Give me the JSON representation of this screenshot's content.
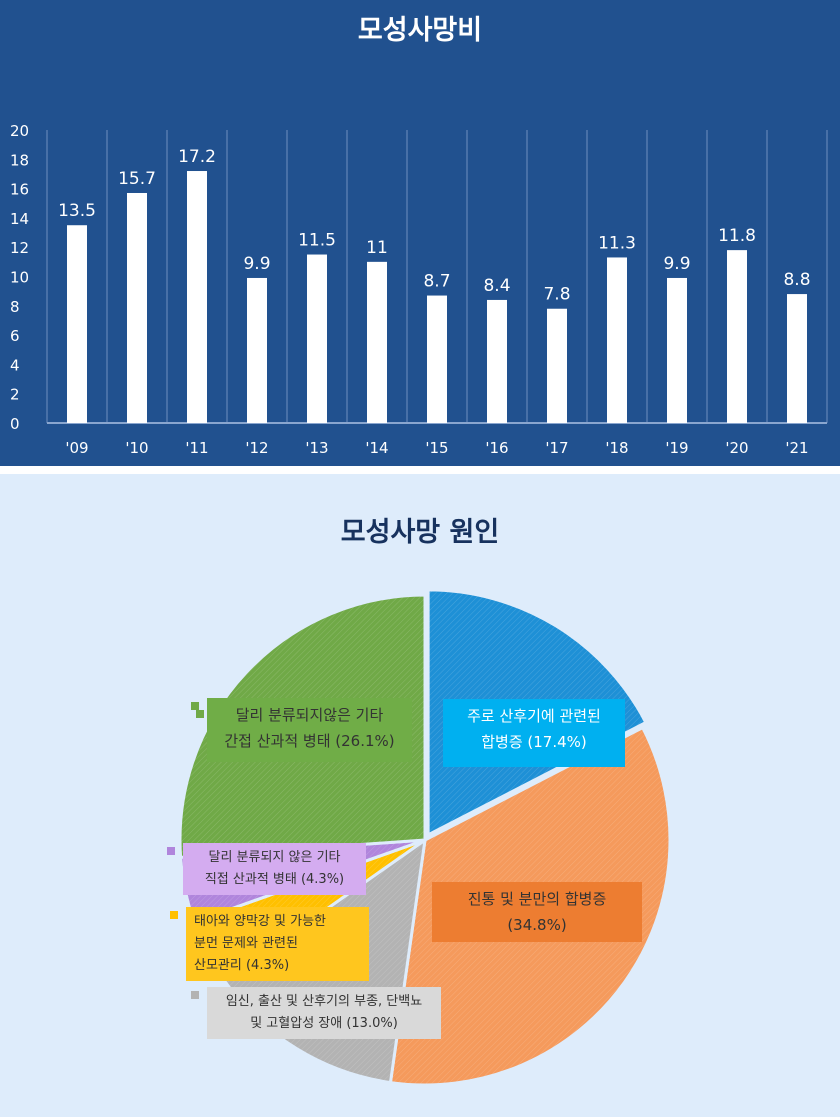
{
  "chart_data": [
    {
      "type": "bar",
      "title": "모성사망비",
      "categories": [
        "'09",
        "'10",
        "'11",
        "'12",
        "'13",
        "'14",
        "'15",
        "'16",
        "'17",
        "'18",
        "'19",
        "'20",
        "'21"
      ],
      "values": [
        13.5,
        15.7,
        17.2,
        9.9,
        11.5,
        11,
        8.7,
        8.4,
        7.8,
        11.3,
        9.9,
        11.8,
        8.8
      ],
      "ylim": [
        0,
        20
      ],
      "yticks": [
        0,
        2,
        4,
        6,
        8,
        10,
        12,
        14,
        16,
        18,
        20
      ],
      "xlabel": "",
      "ylabel": "",
      "grid": "vertical separators",
      "colors": {
        "background": "#21518f",
        "bar": "#ffffff",
        "text": "#ffffff"
      }
    },
    {
      "type": "pie",
      "title": "모성사망 원인",
      "slices": [
        {
          "label_lines": [
            "주로 산후기에 관련된",
            "합병증 (17.4%)"
          ],
          "value": 17.4,
          "color": "#1e90d6",
          "label_bg": "#00b0f0",
          "label_color": "#ffffff"
        },
        {
          "label_lines": [
            "진통 및 분만의 합병증",
            "(34.8%)"
          ],
          "value": 34.8,
          "color": "#f59a5c",
          "label_bg": "#ed7d31",
          "label_color": "#333333"
        },
        {
          "label_lines": [
            "임신, 출산 및 산후기의 부종, 단백뇨",
            "및 고혈압성 장애 (13.0%)"
          ],
          "value": 13.0,
          "color": "#b3b3b3",
          "label_bg": "#d9d9d9",
          "label_color": "#333333"
        },
        {
          "label_lines": [
            "태아와 양막강 및 가능한",
            "분먼 문제와 관련된",
            "산모관리 (4.3%)"
          ],
          "value": 4.3,
          "color": "#ffc000",
          "label_bg": "#ffc61e",
          "label_color": "#333333"
        },
        {
          "label_lines": [
            "달리 분류되지 않은 기타",
            "직접 산과적 병태 (4.3%)"
          ],
          "value": 4.3,
          "color": "#b085dc",
          "label_bg": "#d4acf0",
          "label_color": "#333333"
        },
        {
          "label_lines": [
            "달리 분류되지않은 기타",
            "간접 산과적 병태 (26.1%)"
          ],
          "value": 26.1,
          "color": "#70a947",
          "label_bg": "#70ad47",
          "label_color": "#333333"
        }
      ]
    }
  ]
}
